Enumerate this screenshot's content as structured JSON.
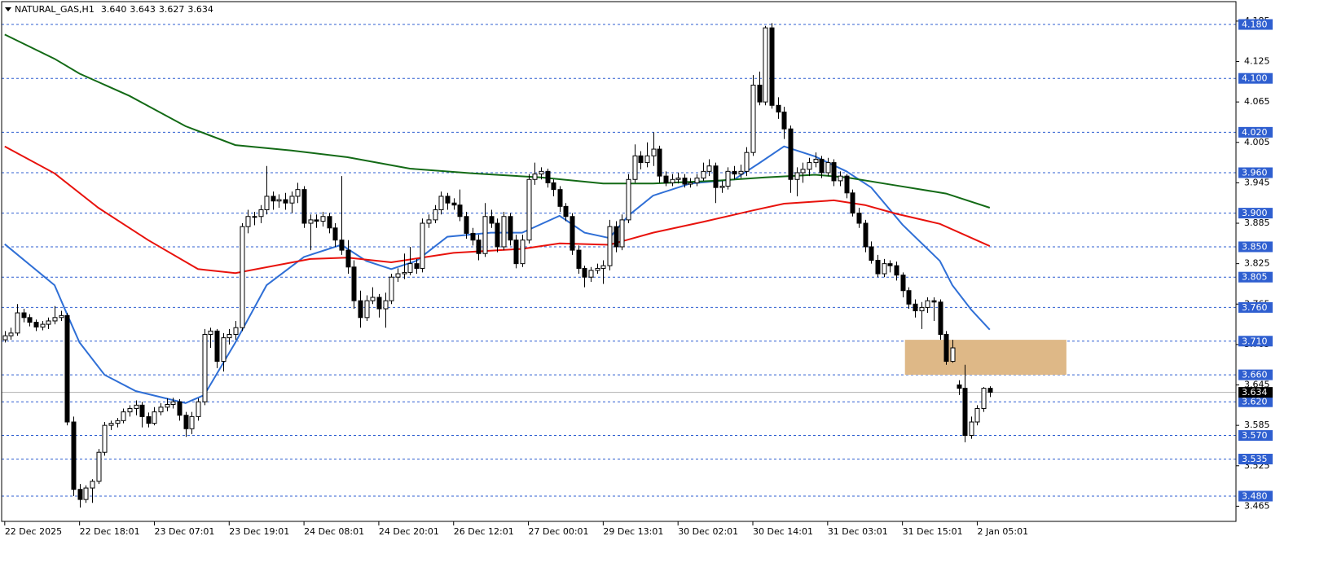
{
  "chart_data": {
    "type": "candlestick",
    "header": {
      "symbol": "NATURAL_GAS,H1",
      "ohlc_labels": [
        "3.640",
        "3.643",
        "3.627",
        "3.634"
      ]
    },
    "xlim": [
      -0.5,
      197.5
    ],
    "ylim": [
      3.4425,
      4.2139
    ],
    "yticks": [
      4.185,
      4.125,
      4.065,
      4.005,
      3.945,
      3.885,
      3.825,
      3.765,
      3.705,
      3.645,
      3.585,
      3.525,
      3.465
    ],
    "categories": [
      "22 Dec 2025",
      null,
      null,
      null,
      null,
      null,
      null,
      null,
      null,
      null,
      null,
      null,
      "22 Dec 18:01",
      null,
      null,
      null,
      null,
      null,
      null,
      null,
      null,
      null,
      null,
      null,
      "23 Dec 07:01",
      null,
      null,
      null,
      null,
      null,
      null,
      null,
      null,
      null,
      null,
      null,
      "23 Dec 19:01",
      null,
      null,
      null,
      null,
      null,
      null,
      null,
      null,
      null,
      null,
      null,
      "24 Dec 08:01",
      null,
      null,
      null,
      null,
      null,
      null,
      null,
      null,
      null,
      null,
      null,
      "24 Dec 20:01",
      null,
      null,
      null,
      null,
      null,
      null,
      null,
      null,
      null,
      null,
      null,
      "26 Dec 12:01",
      null,
      null,
      null,
      null,
      null,
      null,
      null,
      null,
      null,
      null,
      null,
      "27 Dec 00:01",
      null,
      null,
      null,
      null,
      null,
      null,
      null,
      null,
      null,
      null,
      null,
      "29 Dec 13:01",
      null,
      null,
      null,
      null,
      null,
      null,
      null,
      null,
      null,
      null,
      null,
      "30 Dec 02:01",
      null,
      null,
      null,
      null,
      null,
      null,
      null,
      null,
      null,
      null,
      null,
      "30 Dec 14:01",
      null,
      null,
      null,
      null,
      null,
      null,
      null,
      null,
      null,
      null,
      null,
      "31 Dec 03:01",
      null,
      null,
      null,
      null,
      null,
      null,
      null,
      null,
      null,
      null,
      null,
      "31 Dec 15:01",
      null,
      null,
      null,
      null,
      null,
      null,
      null,
      null,
      null,
      null,
      null,
      "2 Jan 05:01",
      null,
      null
    ],
    "candles": [
      [
        3.712,
        3.725,
        3.708,
        3.718
      ],
      [
        3.718,
        3.73,
        3.712,
        3.722
      ],
      [
        3.722,
        3.765,
        3.718,
        3.752
      ],
      [
        3.752,
        3.758,
        3.738,
        3.745
      ],
      [
        3.745,
        3.75,
        3.732,
        3.738
      ],
      [
        3.738,
        3.742,
        3.725,
        3.731
      ],
      [
        3.731,
        3.74,
        3.726,
        3.735
      ],
      [
        3.735,
        3.745,
        3.728,
        3.74
      ],
      [
        3.74,
        3.762,
        3.735,
        3.745
      ],
      [
        3.745,
        3.755,
        3.74,
        3.748
      ],
      [
        3.748,
        3.752,
        3.585,
        3.59
      ],
      [
        3.59,
        3.598,
        3.48,
        3.49
      ],
      [
        3.49,
        3.498,
        3.463,
        3.475
      ],
      [
        3.475,
        3.496,
        3.47,
        3.492
      ],
      [
        3.492,
        3.505,
        3.47,
        3.502
      ],
      [
        3.502,
        3.55,
        3.498,
        3.545
      ],
      [
        3.545,
        3.59,
        3.54,
        3.585
      ],
      [
        3.585,
        3.592,
        3.578,
        3.588
      ],
      [
        3.588,
        3.596,
        3.582,
        3.592
      ],
      [
        3.592,
        3.61,
        3.588,
        3.605
      ],
      [
        3.605,
        3.615,
        3.598,
        3.61
      ],
      [
        3.61,
        3.622,
        3.6,
        3.615
      ],
      [
        3.615,
        3.62,
        3.582,
        3.598
      ],
      [
        3.598,
        3.604,
        3.582,
        3.588
      ],
      [
        3.588,
        3.612,
        3.585,
        3.605
      ],
      [
        3.605,
        3.618,
        3.6,
        3.612
      ],
      [
        3.612,
        3.625,
        3.606,
        3.616
      ],
      [
        3.616,
        3.626,
        3.61,
        3.62
      ],
      [
        3.62,
        3.624,
        3.592,
        3.6
      ],
      [
        3.6,
        3.605,
        3.568,
        3.58
      ],
      [
        3.58,
        3.605,
        3.572,
        3.598
      ],
      [
        3.598,
        3.625,
        3.592,
        3.62
      ],
      [
        3.62,
        3.728,
        3.615,
        3.72
      ],
      [
        3.72,
        3.73,
        3.7,
        3.725
      ],
      [
        3.725,
        3.728,
        3.67,
        3.68
      ],
      [
        3.68,
        3.722,
        3.665,
        3.715
      ],
      [
        3.715,
        3.728,
        3.705,
        3.72
      ],
      [
        3.72,
        3.74,
        3.712,
        3.73
      ],
      [
        3.73,
        3.885,
        3.725,
        3.88
      ],
      [
        3.88,
        3.905,
        3.87,
        3.895
      ],
      [
        3.895,
        3.902,
        3.882,
        3.895
      ],
      [
        3.895,
        3.912,
        3.885,
        3.905
      ],
      [
        3.905,
        3.97,
        3.898,
        3.925
      ],
      [
        3.925,
        3.932,
        3.905,
        3.918
      ],
      [
        3.918,
        3.928,
        3.908,
        3.92
      ],
      [
        3.92,
        3.93,
        3.905,
        3.915
      ],
      [
        3.915,
        3.932,
        3.9,
        3.925
      ],
      [
        3.925,
        3.945,
        3.915,
        3.935
      ],
      [
        3.935,
        3.94,
        3.878,
        3.885
      ],
      [
        3.885,
        3.898,
        3.845,
        3.89
      ],
      [
        3.89,
        3.898,
        3.878,
        3.888
      ],
      [
        3.888,
        3.902,
        3.88,
        3.895
      ],
      [
        3.895,
        3.9,
        3.87,
        3.878
      ],
      [
        3.878,
        3.885,
        3.85,
        3.86
      ],
      [
        3.86,
        3.955,
        3.838,
        3.845
      ],
      [
        3.845,
        3.86,
        3.81,
        3.82
      ],
      [
        3.82,
        3.83,
        3.758,
        3.77
      ],
      [
        3.77,
        3.785,
        3.73,
        3.745
      ],
      [
        3.745,
        3.778,
        3.74,
        3.77
      ],
      [
        3.77,
        3.79,
        3.765,
        3.775
      ],
      [
        3.775,
        3.78,
        3.745,
        3.758
      ],
      [
        3.758,
        3.782,
        3.73,
        3.77
      ],
      [
        3.77,
        3.81,
        3.765,
        3.805
      ],
      [
        3.805,
        3.818,
        3.798,
        3.81
      ],
      [
        3.81,
        3.84,
        3.802,
        3.812
      ],
      [
        3.812,
        3.85,
        3.808,
        3.825
      ],
      [
        3.825,
        3.832,
        3.81,
        3.818
      ],
      [
        3.818,
        3.892,
        3.812,
        3.885
      ],
      [
        3.885,
        3.898,
        3.878,
        3.89
      ],
      [
        3.89,
        3.912,
        3.885,
        3.905
      ],
      [
        3.905,
        3.932,
        3.898,
        3.925
      ],
      [
        3.925,
        3.93,
        3.905,
        3.915
      ],
      [
        3.915,
        3.922,
        3.905,
        3.912
      ],
      [
        3.912,
        3.935,
        3.888,
        3.895
      ],
      [
        3.895,
        3.902,
        3.862,
        3.87
      ],
      [
        3.87,
        3.878,
        3.852,
        3.86
      ],
      [
        3.86,
        3.868,
        3.83,
        3.84
      ],
      [
        3.84,
        3.915,
        3.835,
        3.895
      ],
      [
        3.895,
        3.905,
        3.878,
        3.885
      ],
      [
        3.885,
        3.892,
        3.842,
        3.85
      ],
      [
        3.85,
        3.902,
        3.845,
        3.895
      ],
      [
        3.895,
        3.9,
        3.852,
        3.86
      ],
      [
        3.86,
        3.868,
        3.818,
        3.825
      ],
      [
        3.825,
        3.868,
        3.82,
        3.86
      ],
      [
        3.86,
        3.958,
        3.855,
        3.95
      ],
      [
        3.95,
        3.975,
        3.942,
        3.958
      ],
      [
        3.958,
        3.968,
        3.95,
        3.962
      ],
      [
        3.962,
        3.966,
        3.938,
        3.945
      ],
      [
        3.945,
        3.95,
        3.925,
        3.935
      ],
      [
        3.935,
        3.94,
        3.902,
        3.91
      ],
      [
        3.91,
        3.915,
        3.888,
        3.895
      ],
      [
        3.895,
        3.9,
        3.838,
        3.845
      ],
      [
        3.845,
        3.852,
        3.81,
        3.818
      ],
      [
        3.818,
        3.822,
        3.79,
        3.805
      ],
      [
        3.805,
        3.82,
        3.798,
        3.815
      ],
      [
        3.815,
        3.825,
        3.81,
        3.818
      ],
      [
        3.818,
        3.83,
        3.795,
        3.822
      ],
      [
        3.822,
        3.89,
        3.815,
        3.88
      ],
      [
        3.88,
        3.888,
        3.842,
        3.85
      ],
      [
        3.85,
        3.898,
        3.845,
        3.89
      ],
      [
        3.89,
        3.958,
        3.885,
        3.95
      ],
      [
        3.95,
        4.002,
        3.945,
        3.985
      ],
      [
        3.985,
        3.992,
        3.965,
        3.975
      ],
      [
        3.975,
        4.005,
        3.968,
        3.985
      ],
      [
        3.985,
        4.02,
        3.97,
        3.995
      ],
      [
        3.995,
        4.0,
        3.945,
        3.955
      ],
      [
        3.955,
        3.962,
        3.94,
        3.945
      ],
      [
        3.945,
        3.958,
        3.94,
        3.95
      ],
      [
        3.95,
        3.96,
        3.944,
        3.952
      ],
      [
        3.952,
        3.958,
        3.938,
        3.943
      ],
      [
        3.943,
        3.952,
        3.938,
        3.945
      ],
      [
        3.945,
        3.958,
        3.94,
        3.952
      ],
      [
        3.952,
        3.975,
        3.948,
        3.962
      ],
      [
        3.962,
        3.98,
        3.955,
        3.97
      ],
      [
        3.97,
        3.975,
        3.915,
        3.938
      ],
      [
        3.938,
        3.948,
        3.93,
        3.94
      ],
      [
        3.94,
        3.968,
        3.935,
        3.962
      ],
      [
        3.962,
        3.97,
        3.95,
        3.958
      ],
      [
        3.958,
        3.972,
        3.952,
        3.962
      ],
      [
        3.962,
        3.998,
        3.955,
        3.99
      ],
      [
        3.99,
        4.105,
        3.985,
        4.09
      ],
      [
        4.09,
        4.11,
        4.06,
        4.065
      ],
      [
        4.065,
        4.178,
        4.06,
        4.175
      ],
      [
        4.175,
        4.182,
        4.055,
        4.06
      ],
      [
        4.06,
        4.072,
        4.04,
        4.05
      ],
      [
        4.05,
        4.058,
        4.01,
        4.025
      ],
      [
        4.025,
        4.03,
        3.93,
        3.95
      ],
      [
        3.95,
        3.968,
        3.925,
        3.96
      ],
      [
        3.96,
        3.975,
        3.945,
        3.965
      ],
      [
        3.965,
        3.982,
        3.955,
        3.975
      ],
      [
        3.975,
        3.99,
        3.968,
        3.98
      ],
      [
        3.98,
        3.985,
        3.952,
        3.96
      ],
      [
        3.96,
        3.982,
        3.955,
        3.975
      ],
      [
        3.975,
        3.98,
        3.94,
        3.948
      ],
      [
        3.948,
        3.962,
        3.94,
        3.955
      ],
      [
        3.955,
        3.958,
        3.922,
        3.93
      ],
      [
        3.93,
        3.935,
        3.895,
        3.9
      ],
      [
        3.9,
        3.908,
        3.878,
        3.885
      ],
      [
        3.885,
        3.89,
        3.842,
        3.85
      ],
      [
        3.85,
        3.858,
        3.825,
        3.83
      ],
      [
        3.83,
        3.838,
        3.805,
        3.81
      ],
      [
        3.81,
        3.832,
        3.805,
        3.825
      ],
      [
        3.825,
        3.83,
        3.812,
        3.822
      ],
      [
        3.822,
        3.828,
        3.8,
        3.808
      ],
      [
        3.808,
        3.812,
        3.775,
        3.785
      ],
      [
        3.785,
        3.79,
        3.758,
        3.765
      ],
      [
        3.765,
        3.772,
        3.745,
        3.755
      ],
      [
        3.755,
        3.768,
        3.728,
        3.76
      ],
      [
        3.76,
        3.775,
        3.752,
        3.77
      ],
      [
        3.77,
        3.775,
        3.74,
        3.768
      ],
      [
        3.768,
        3.772,
        3.712,
        3.72
      ],
      [
        3.72,
        3.725,
        3.675,
        3.68
      ],
      [
        3.68,
        3.712,
        3.678,
        3.7
      ],
      [
        3.645,
        3.652,
        3.63,
        3.64
      ],
      [
        3.64,
        3.675,
        3.56,
        3.57
      ],
      [
        3.57,
        3.598,
        3.565,
        3.59
      ],
      [
        3.59,
        3.615,
        3.585,
        3.61
      ],
      [
        3.61,
        3.642,
        3.605,
        3.64
      ],
      [
        3.64,
        3.643,
        3.627,
        3.634
      ]
    ],
    "series": [
      {
        "color": "#2f6fd6",
        "x": [
          0,
          8,
          10,
          12,
          16,
          21,
          29,
          32,
          37,
          42,
          48,
          54,
          58,
          62,
          66,
          71,
          78,
          83,
          89,
          93,
          97,
          100,
          104,
          110,
          117,
          121,
          125,
          130,
          135,
          139,
          144,
          150,
          152,
          155,
          158
        ],
        "values": [
          3.854,
          3.793,
          3.75,
          3.708,
          3.66,
          3.636,
          3.618,
          3.63,
          3.708,
          3.793,
          3.835,
          3.853,
          3.829,
          3.817,
          3.829,
          3.865,
          3.871,
          3.871,
          3.896,
          3.871,
          3.863,
          3.896,
          3.926,
          3.944,
          3.95,
          3.974,
          3.999,
          3.984,
          3.962,
          3.938,
          3.883,
          3.829,
          3.793,
          3.757,
          3.727
        ]
      },
      {
        "color": "#e8120c",
        "x": [
          0,
          8,
          15,
          23,
          31,
          37,
          49,
          55,
          62,
          72,
          83,
          89,
          97,
          104,
          112,
          120,
          125,
          133,
          138,
          143,
          150,
          158
        ],
        "values": [
          3.999,
          3.959,
          3.908,
          3.86,
          3.817,
          3.811,
          3.832,
          3.834,
          3.827,
          3.841,
          3.847,
          3.855,
          3.853,
          3.871,
          3.887,
          3.904,
          3.914,
          3.919,
          3.912,
          3.899,
          3.884,
          3.851
        ]
      },
      {
        "color": "#136a16",
        "x": [
          0,
          8,
          12,
          20,
          29,
          37,
          46,
          55,
          65,
          75,
          86,
          96,
          104,
          114,
          122,
          130,
          135,
          143,
          151,
          158
        ],
        "values": [
          4.165,
          4.129,
          4.107,
          4.074,
          4.029,
          4.001,
          3.993,
          3.983,
          3.966,
          3.959,
          3.953,
          3.944,
          3.944,
          3.948,
          3.953,
          3.957,
          3.953,
          3.941,
          3.929,
          3.908
        ]
      }
    ],
    "levels": [
      {
        "value": 4.18,
        "label": "4.180"
      },
      {
        "value": 4.1,
        "label": "4.100"
      },
      {
        "value": 4.02,
        "label": "4.020"
      },
      {
        "value": 3.96,
        "label": "3.960"
      },
      {
        "value": 3.9,
        "label": "3.900"
      },
      {
        "value": 3.85,
        "label": "3.850"
      },
      {
        "value": 3.805,
        "label": "3.805"
      },
      {
        "value": 3.76,
        "label": "3.760"
      },
      {
        "value": 3.71,
        "label": "3.710"
      },
      {
        "value": 3.66,
        "label": "3.660"
      },
      {
        "value": 3.62,
        "label": "3.620"
      },
      {
        "value": 3.57,
        "label": "3.570"
      },
      {
        "value": 3.535,
        "label": "3.535"
      },
      {
        "value": 3.48,
        "label": "3.480"
      }
    ],
    "level_color": "#2f5fd0",
    "price_line": {
      "value": 3.634,
      "label": "3.634"
    },
    "zone": {
      "xlim": [
        144.4,
        170.3
      ],
      "ylim": [
        3.66,
        3.712
      ],
      "color": "#deb887"
    },
    "up_color": "#ffffff",
    "down_color": "#000000"
  }
}
